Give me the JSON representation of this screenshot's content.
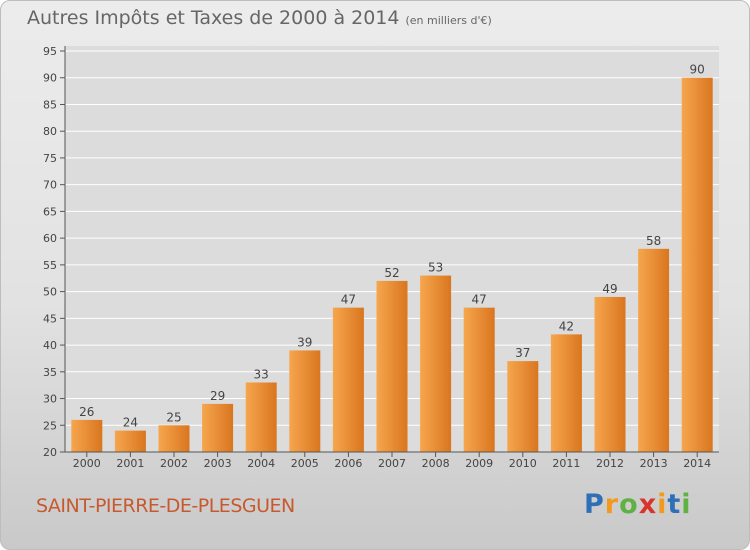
{
  "title": "Autres Impôts et Taxes de 2000 à 2014",
  "subtitle": "(en milliers d'€)",
  "city": "SAINT-PIERRE-DE-PLESGUEN",
  "logo": {
    "letters": [
      "P",
      "r",
      "o",
      "x",
      "i",
      "t",
      "i"
    ],
    "colors": [
      "#2e6fb7",
      "#f39a1e",
      "#5fb143",
      "#d9342b",
      "#f39a1e",
      "#2e6fb7",
      "#5fb143"
    ]
  },
  "colors": {
    "bar_light": "#f6a64e",
    "bar_dark": "#d9761f",
    "axis": "#555555",
    "grid": "#ffffff",
    "city": "#c8592f"
  },
  "chart_data": {
    "type": "bar",
    "title": "Autres Impôts et Taxes de 2000 à 2014",
    "subtitle": "(en milliers d'€)",
    "categories": [
      "2000",
      "2001",
      "2002",
      "2003",
      "2004",
      "2005",
      "2006",
      "2007",
      "2008",
      "2009",
      "2010",
      "2011",
      "2012",
      "2013",
      "2014"
    ],
    "values": [
      26,
      24,
      25,
      29,
      33,
      39,
      47,
      52,
      53,
      47,
      37,
      42,
      49,
      58,
      90
    ],
    "ylim": [
      20,
      95
    ],
    "yticks": [
      20,
      25,
      30,
      35,
      40,
      45,
      50,
      55,
      60,
      65,
      70,
      75,
      80,
      85,
      90,
      95
    ],
    "grid": true,
    "data_labels": true
  }
}
